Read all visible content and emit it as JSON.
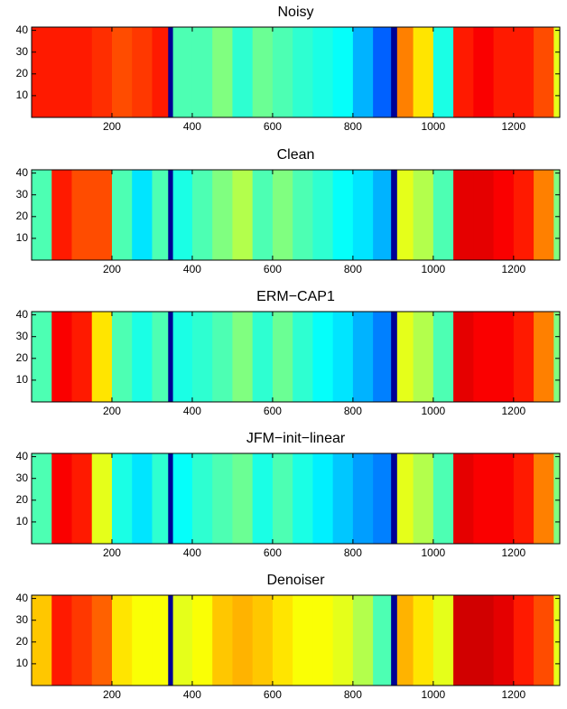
{
  "chart_data": [
    {
      "type": "heatmap",
      "title": "Noisy",
      "colormap": "jet",
      "clim": [
        0,
        1
      ],
      "x_edges": [
        0,
        50,
        100,
        150,
        200,
        250,
        300,
        340,
        352,
        400,
        450,
        500,
        550,
        600,
        650,
        700,
        750,
        800,
        850,
        895,
        910,
        950,
        1000,
        1050,
        1100,
        1150,
        1200,
        1250,
        1300,
        1315
      ],
      "values": [
        0.85,
        0.85,
        0.85,
        0.83,
        0.8,
        0.82,
        0.85,
        0.02,
        0.45,
        0.45,
        0.5,
        0.42,
        0.48,
        0.45,
        0.42,
        0.4,
        0.38,
        0.3,
        0.22,
        0.02,
        0.75,
        0.65,
        0.4,
        0.85,
        0.88,
        0.85,
        0.85,
        0.8,
        0.6
      ],
      "xlim": [
        0,
        1315
      ],
      "ylim": [
        0,
        41.5
      ],
      "xticks": [
        200,
        400,
        600,
        800,
        1000,
        1200
      ],
      "yticks": [
        10,
        20,
        30,
        40
      ]
    },
    {
      "type": "heatmap",
      "title": "Clean",
      "colormap": "jet",
      "clim": [
        0,
        1
      ],
      "x_edges": [
        0,
        50,
        100,
        150,
        200,
        250,
        300,
        340,
        352,
        400,
        450,
        500,
        550,
        600,
        650,
        700,
        750,
        800,
        850,
        895,
        910,
        950,
        1000,
        1050,
        1100,
        1150,
        1200,
        1250,
        1300,
        1315
      ],
      "values": [
        0.45,
        0.85,
        0.8,
        0.8,
        0.45,
        0.35,
        0.45,
        0.02,
        0.4,
        0.45,
        0.5,
        0.55,
        0.45,
        0.5,
        0.45,
        0.42,
        0.38,
        0.35,
        0.3,
        0.02,
        0.6,
        0.55,
        0.45,
        0.9,
        0.9,
        0.88,
        0.85,
        0.75,
        0.5
      ],
      "xlim": [
        0,
        1315
      ],
      "ylim": [
        0,
        41.5
      ],
      "xticks": [
        200,
        400,
        600,
        800,
        1000,
        1200
      ],
      "yticks": [
        10,
        20,
        30,
        40
      ]
    },
    {
      "type": "heatmap",
      "title": "ERM−CAP1",
      "colormap": "jet",
      "clim": [
        0,
        1
      ],
      "x_edges": [
        0,
        50,
        100,
        150,
        200,
        250,
        300,
        340,
        352,
        400,
        450,
        500,
        550,
        600,
        650,
        700,
        750,
        800,
        850,
        895,
        910,
        950,
        1000,
        1050,
        1100,
        1150,
        1200,
        1250,
        1300,
        1315
      ],
      "values": [
        0.45,
        0.88,
        0.85,
        0.65,
        0.45,
        0.4,
        0.45,
        0.02,
        0.4,
        0.42,
        0.45,
        0.5,
        0.42,
        0.48,
        0.42,
        0.38,
        0.35,
        0.3,
        0.25,
        0.02,
        0.6,
        0.55,
        0.45,
        0.9,
        0.88,
        0.88,
        0.85,
        0.75,
        0.5
      ],
      "xlim": [
        0,
        1315
      ],
      "ylim": [
        0,
        41.5
      ],
      "xticks": [
        200,
        400,
        600,
        800,
        1000,
        1200
      ],
      "yticks": [
        10,
        20,
        30,
        40
      ]
    },
    {
      "type": "heatmap",
      "title": "JFM−init−linear",
      "colormap": "jet",
      "clim": [
        0,
        1
      ],
      "x_edges": [
        0,
        50,
        100,
        150,
        200,
        250,
        300,
        340,
        352,
        400,
        450,
        500,
        550,
        600,
        650,
        700,
        750,
        800,
        850,
        895,
        910,
        950,
        1000,
        1050,
        1100,
        1150,
        1200,
        1250,
        1300,
        1315
      ],
      "values": [
        0.45,
        0.88,
        0.85,
        0.6,
        0.4,
        0.35,
        0.42,
        0.02,
        0.38,
        0.42,
        0.45,
        0.48,
        0.4,
        0.45,
        0.4,
        0.36,
        0.32,
        0.28,
        0.25,
        0.02,
        0.6,
        0.55,
        0.45,
        0.9,
        0.88,
        0.88,
        0.85,
        0.75,
        0.5
      ],
      "xlim": [
        0,
        1315
      ],
      "ylim": [
        0,
        41.5
      ],
      "xticks": [
        200,
        400,
        600,
        800,
        1000,
        1200
      ],
      "yticks": [
        10,
        20,
        30,
        40
      ]
    },
    {
      "type": "heatmap",
      "title": "Denoiser",
      "colormap": "jet",
      "clim": [
        0,
        1
      ],
      "x_edges": [
        0,
        50,
        100,
        150,
        200,
        250,
        300,
        340,
        352,
        400,
        450,
        500,
        550,
        600,
        650,
        700,
        750,
        800,
        850,
        895,
        910,
        950,
        1000,
        1050,
        1100,
        1150,
        1200,
        1250,
        1300,
        1315
      ],
      "values": [
        0.68,
        0.85,
        0.82,
        0.78,
        0.65,
        0.62,
        0.62,
        0.02,
        0.6,
        0.62,
        0.68,
        0.7,
        0.68,
        0.65,
        0.62,
        0.62,
        0.6,
        0.55,
        0.45,
        0.02,
        0.7,
        0.65,
        0.6,
        0.92,
        0.92,
        0.9,
        0.85,
        0.8,
        0.6
      ],
      "xlim": [
        0,
        1315
      ],
      "ylim": [
        0,
        41.5
      ],
      "xticks": [
        200,
        400,
        600,
        800,
        1000,
        1200
      ],
      "yticks": [
        10,
        20,
        30,
        40
      ]
    }
  ]
}
